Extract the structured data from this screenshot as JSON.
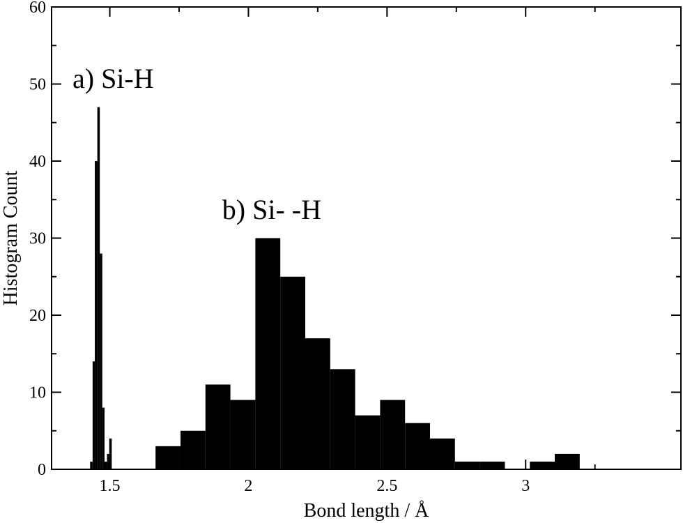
{
  "chart_data": {
    "type": "bar",
    "xlabel": "Bond length / Å",
    "ylabel": "Histogram Count",
    "xlim": [
      1.29,
      3.56
    ],
    "ylim": [
      0,
      60
    ],
    "x_ticks": [
      {
        "value": 1.5,
        "label": "1.5"
      },
      {
        "value": 2,
        "label": "2"
      },
      {
        "value": 2.5,
        "label": "2.5"
      },
      {
        "value": 3,
        "label": "3"
      }
    ],
    "y_ticks": [
      {
        "value": 0,
        "label": "0"
      },
      {
        "value": 10,
        "label": "10"
      },
      {
        "value": 20,
        "label": "20"
      },
      {
        "value": 30,
        "label": "30"
      },
      {
        "value": 40,
        "label": "40"
      },
      {
        "value": 50,
        "label": "50"
      },
      {
        "value": 60,
        "label": "60"
      }
    ],
    "grid": false,
    "bar_color": "#000000",
    "series": [
      {
        "bins": [
          {
            "x0": 1.429,
            "x1": 1.438,
            "value": 1
          },
          {
            "x0": 1.438,
            "x1": 1.446,
            "value": 14
          },
          {
            "x0": 1.446,
            "x1": 1.455,
            "value": 40
          },
          {
            "x0": 1.455,
            "x1": 1.464,
            "value": 47
          },
          {
            "x0": 1.464,
            "x1": 1.473,
            "value": 28
          },
          {
            "x0": 1.473,
            "x1": 1.481,
            "value": 8
          },
          {
            "x0": 1.481,
            "x1": 1.49,
            "value": 1
          },
          {
            "x0": 1.49,
            "x1": 1.498,
            "value": 2
          },
          {
            "x0": 1.498,
            "x1": 1.507,
            "value": 4
          }
        ]
      },
      {
        "bins": [
          {
            "x0": 1.665,
            "x1": 1.755,
            "value": 3
          },
          {
            "x0": 1.755,
            "x1": 1.845,
            "value": 5
          },
          {
            "x0": 1.845,
            "x1": 1.935,
            "value": 11
          },
          {
            "x0": 1.935,
            "x1": 2.025,
            "value": 9
          },
          {
            "x0": 2.025,
            "x1": 2.115,
            "value": 30
          },
          {
            "x0": 2.115,
            "x1": 2.205,
            "value": 25
          },
          {
            "x0": 2.205,
            "x1": 2.295,
            "value": 17
          },
          {
            "x0": 2.295,
            "x1": 2.385,
            "value": 13
          },
          {
            "x0": 2.385,
            "x1": 2.475,
            "value": 7
          },
          {
            "x0": 2.475,
            "x1": 2.565,
            "value": 9
          },
          {
            "x0": 2.565,
            "x1": 2.655,
            "value": 6
          },
          {
            "x0": 2.655,
            "x1": 2.745,
            "value": 4
          },
          {
            "x0": 2.745,
            "x1": 2.835,
            "value": 1
          },
          {
            "x0": 2.835,
            "x1": 2.925,
            "value": 1
          },
          {
            "x0": 2.925,
            "x1": 3.015,
            "value": 0
          },
          {
            "x0": 3.015,
            "x1": 3.105,
            "value": 1
          },
          {
            "x0": 3.105,
            "x1": 3.195,
            "value": 2
          }
        ]
      }
    ],
    "annotations": [
      {
        "text": "a) Si-H",
        "x": 1.29,
        "y": 49.5
      },
      {
        "text": "b) Si- -H",
        "x": 1.83,
        "y": 32.5
      }
    ]
  }
}
